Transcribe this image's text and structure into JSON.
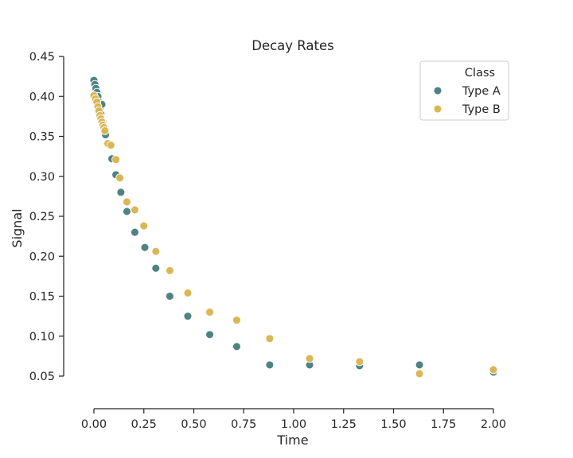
{
  "chart_data": {
    "type": "scatter",
    "title": "Decay Rates",
    "xlabel": "Time",
    "ylabel": "Signal",
    "xlim": [
      0.0,
      2.0
    ],
    "ylim": [
      0.05,
      0.45
    ],
    "xticks": [
      "0.00",
      "0.25",
      "0.50",
      "0.75",
      "1.00",
      "1.25",
      "1.50",
      "1.75",
      "2.00"
    ],
    "yticks": [
      "0.05",
      "0.10",
      "0.15",
      "0.20",
      "0.25",
      "0.30",
      "0.35",
      "0.40",
      "0.45"
    ],
    "grid": false,
    "legend": {
      "title": "Class",
      "placement": "top-right"
    },
    "series": [
      {
        "name": "Type A",
        "color": "#4e8381",
        "points": [
          [
            0.0,
            0.42
          ],
          [
            0.005,
            0.415
          ],
          [
            0.01,
            0.41
          ],
          [
            0.015,
            0.405
          ],
          [
            0.02,
            0.4
          ],
          [
            0.025,
            0.393
          ],
          [
            0.03,
            0.385
          ],
          [
            0.035,
            0.378
          ],
          [
            0.04,
            0.39
          ],
          [
            0.045,
            0.368
          ],
          [
            0.05,
            0.362
          ],
          [
            0.058,
            0.352
          ],
          [
            0.07,
            0.34
          ],
          [
            0.09,
            0.322
          ],
          [
            0.11,
            0.302
          ],
          [
            0.135,
            0.28
          ],
          [
            0.165,
            0.256
          ],
          [
            0.205,
            0.23
          ],
          [
            0.255,
            0.211
          ],
          [
            0.31,
            0.185
          ],
          [
            0.38,
            0.15
          ],
          [
            0.47,
            0.125
          ],
          [
            0.58,
            0.102
          ],
          [
            0.715,
            0.087
          ],
          [
            0.88,
            0.064
          ],
          [
            1.08,
            0.064
          ],
          [
            1.33,
            0.063
          ],
          [
            1.63,
            0.064
          ],
          [
            2.0,
            0.055
          ]
        ]
      },
      {
        "name": "Type B",
        "color": "#dbb654",
        "points": [
          [
            0.0,
            0.401
          ],
          [
            0.008,
            0.397
          ],
          [
            0.015,
            0.393
          ],
          [
            0.02,
            0.387
          ],
          [
            0.025,
            0.382
          ],
          [
            0.03,
            0.376
          ],
          [
            0.035,
            0.372
          ],
          [
            0.04,
            0.368
          ],
          [
            0.045,
            0.364
          ],
          [
            0.05,
            0.361
          ],
          [
            0.055,
            0.357
          ],
          [
            0.07,
            0.341
          ],
          [
            0.085,
            0.339
          ],
          [
            0.11,
            0.321
          ],
          [
            0.13,
            0.298
          ],
          [
            0.165,
            0.268
          ],
          [
            0.205,
            0.258
          ],
          [
            0.25,
            0.238
          ],
          [
            0.31,
            0.206
          ],
          [
            0.38,
            0.182
          ],
          [
            0.47,
            0.154
          ],
          [
            0.58,
            0.13
          ],
          [
            0.715,
            0.12
          ],
          [
            0.88,
            0.097
          ],
          [
            1.08,
            0.072
          ],
          [
            1.33,
            0.068
          ],
          [
            1.63,
            0.053
          ],
          [
            2.0,
            0.058
          ]
        ]
      }
    ]
  }
}
